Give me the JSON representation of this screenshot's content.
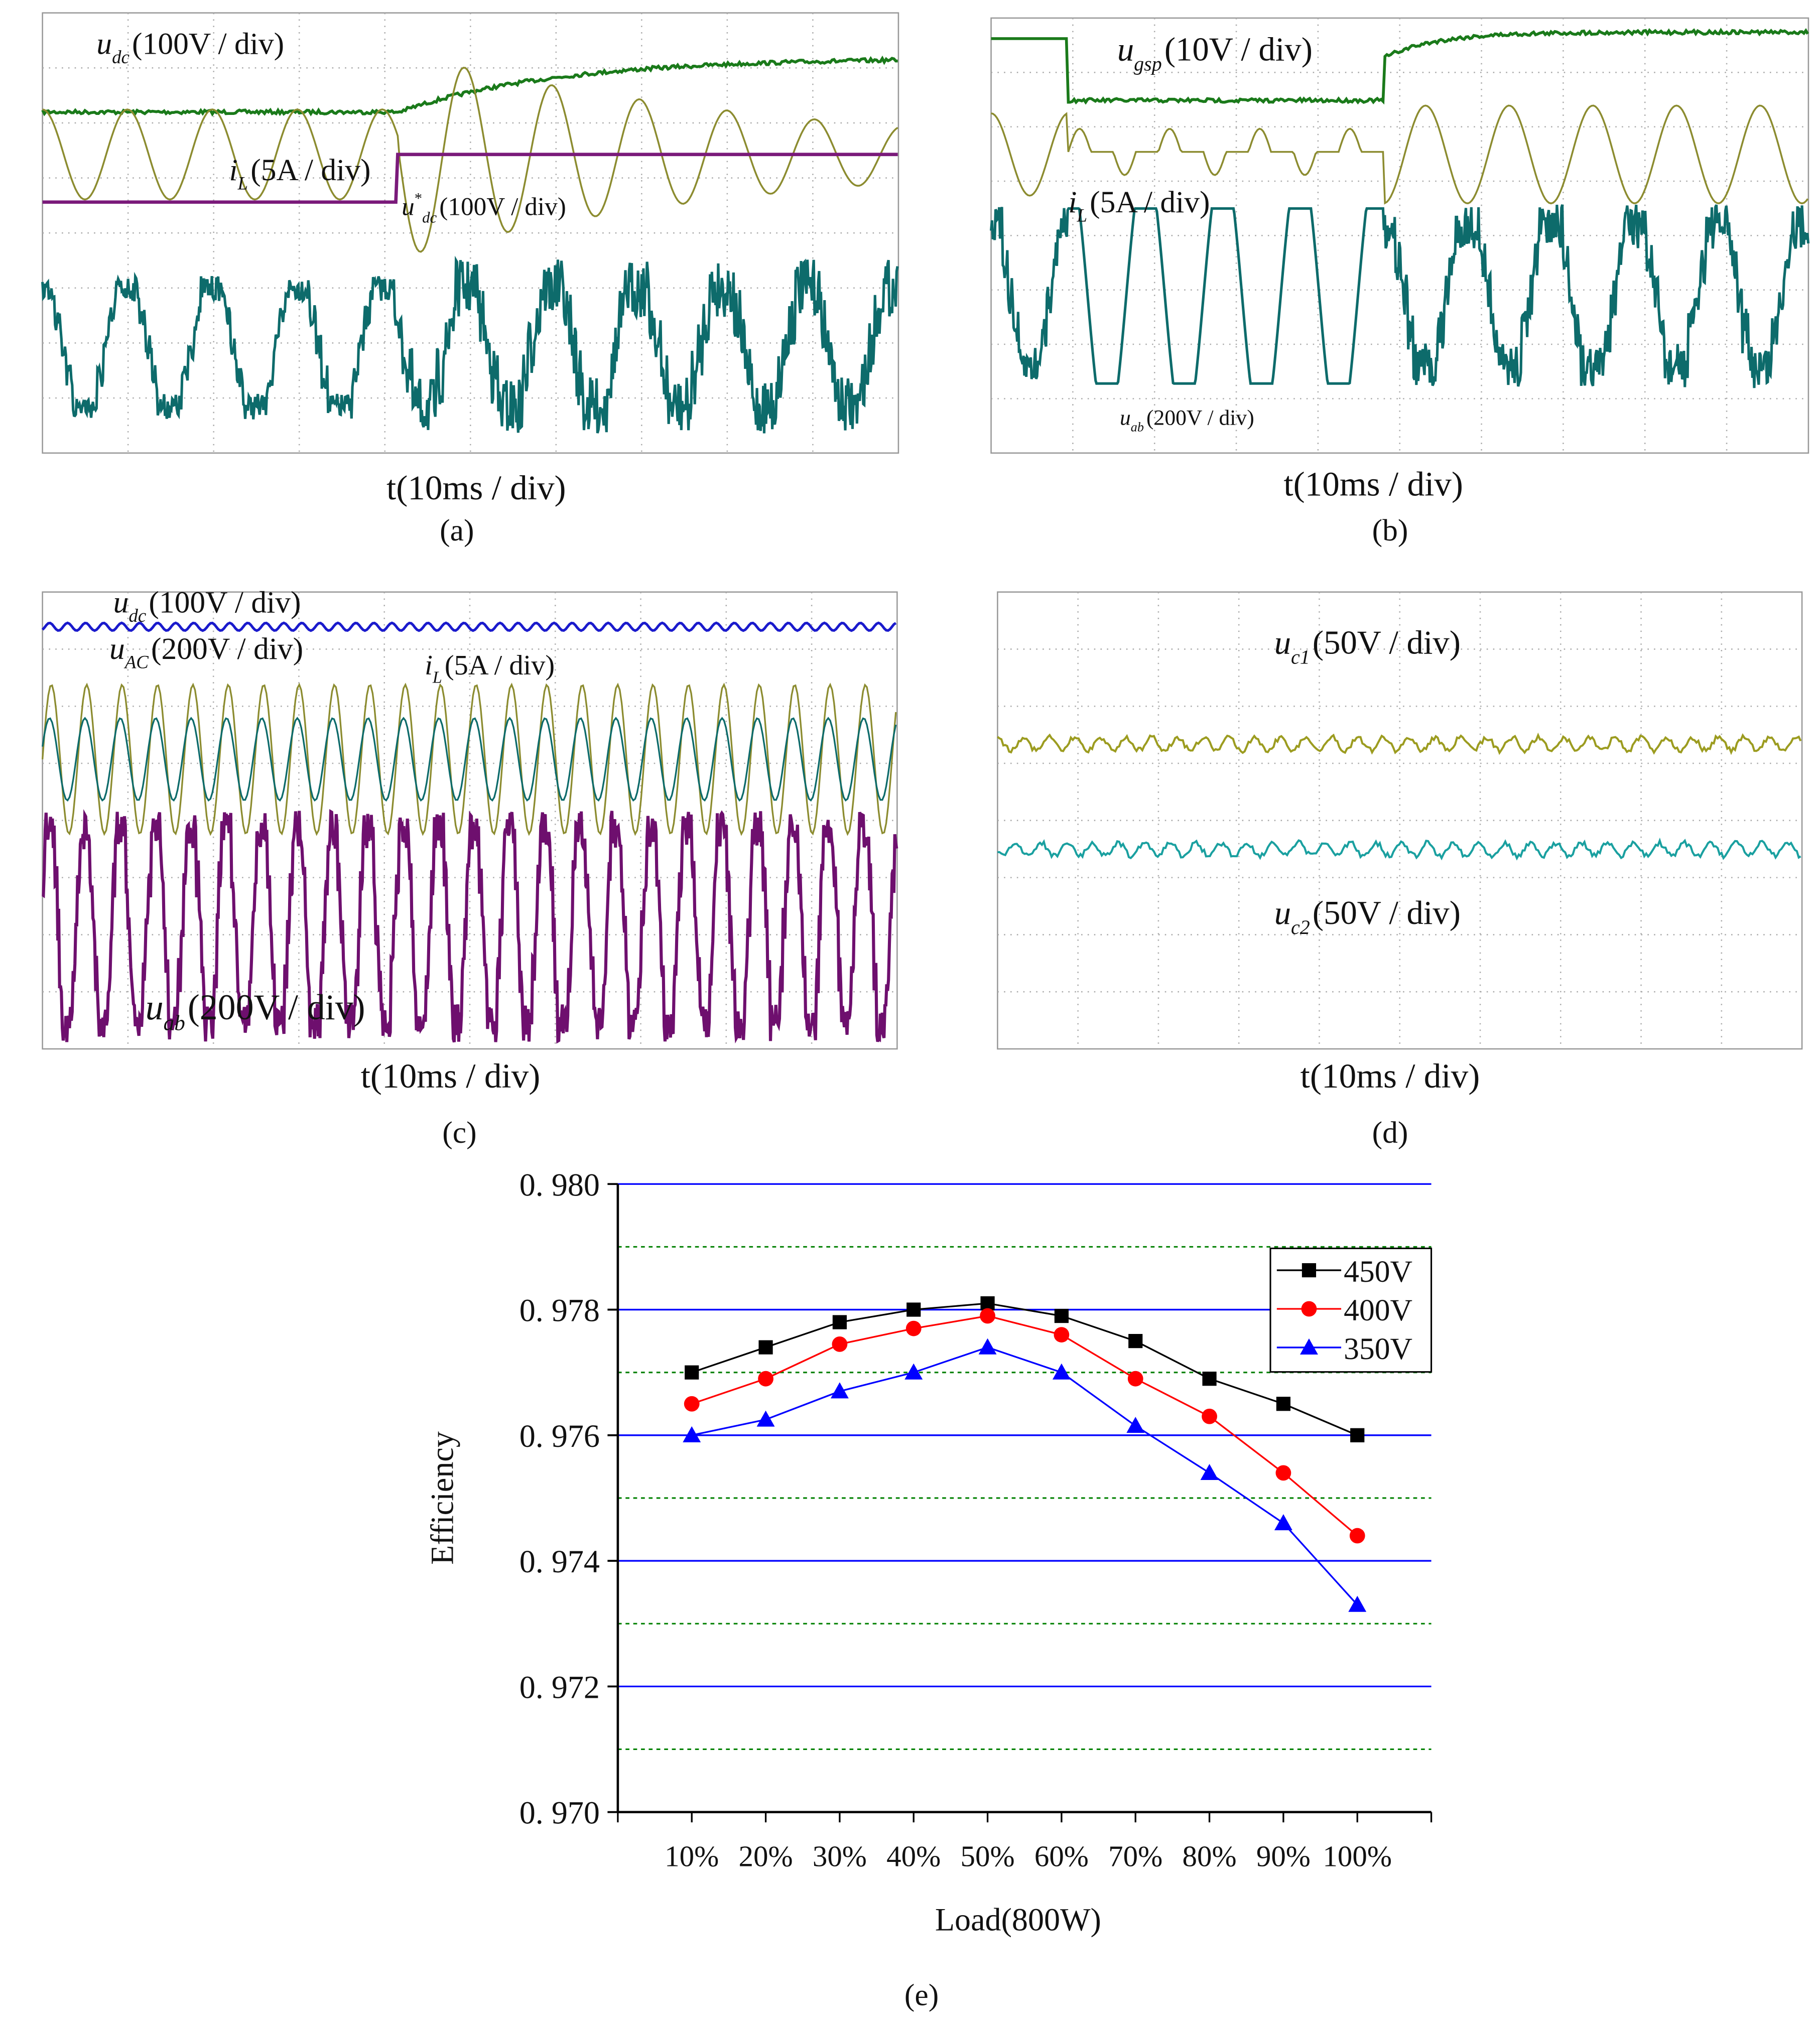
{
  "scope_panels": [
    {
      "caption": "(a)",
      "xlabel": "t(10ms / div)",
      "labels": [
        {
          "symbol": "u",
          "sub": "dc",
          "scale": "(100V / div)"
        },
        {
          "symbol": "i",
          "sub": "L",
          "scale": "(5A / div)"
        },
        {
          "symbol": "u",
          "sup": "*",
          "sub": "dc",
          "scale": "(100V / div)"
        }
      ]
    },
    {
      "caption": "(b)",
      "xlabel": "t(10ms / div)",
      "labels": [
        {
          "symbol": "u",
          "sub": "gsp",
          "scale": "(10V / div)"
        },
        {
          "symbol": "i",
          "sub": "L",
          "scale": "(5A / div)"
        },
        {
          "symbol": "u",
          "sub": "ab",
          "scale": "(200V / div)"
        }
      ]
    },
    {
      "caption": "(c)",
      "xlabel": "t(10ms / div)",
      "labels": [
        {
          "symbol": "u",
          "sub": "dc",
          "scale": "(100V / div)"
        },
        {
          "symbol": "u",
          "sub": "AC",
          "scale": "(200V / div)"
        },
        {
          "symbol": "i",
          "sub": "L",
          "scale": "(5A / div)"
        },
        {
          "symbol": "u",
          "sub": "ab",
          "scale": "(200V / div)"
        }
      ]
    },
    {
      "caption": "(d)",
      "xlabel": "t(10ms / div)",
      "labels": [
        {
          "symbol": "u",
          "sub": "c1",
          "scale": "(50V / div)"
        },
        {
          "symbol": "u",
          "sub": "c2",
          "scale": "(50V / div)"
        }
      ]
    }
  ],
  "chart_data": {
    "type": "line",
    "caption": "(e)",
    "xlabel": "Load(800W)",
    "ylabel": "Efficiency",
    "categories": [
      "10%",
      "20%",
      "30%",
      "40%",
      "50%",
      "60%",
      "70%",
      "80%",
      "90%",
      "100%"
    ],
    "series": [
      {
        "name": "450V",
        "color": "#000000",
        "marker": "square",
        "values": [
          0.977,
          0.9774,
          0.9778,
          0.978,
          0.9781,
          0.9779,
          0.9775,
          0.9769,
          0.9765,
          0.976
        ]
      },
      {
        "name": "400V",
        "color": "#ff0000",
        "marker": "circle",
        "values": [
          0.9765,
          0.9769,
          0.97745,
          0.9777,
          0.9779,
          0.9776,
          0.9769,
          0.9763,
          0.9754,
          0.9744
        ]
      },
      {
        "name": "350V",
        "color": "#0000ff",
        "marker": "triangle",
        "values": [
          0.976,
          0.97625,
          0.9767,
          0.977,
          0.9774,
          0.977,
          0.97615,
          0.9754,
          0.9746,
          0.9733
        ]
      }
    ],
    "ylim": [
      0.97,
      0.98
    ],
    "yticks": [
      {
        "value": 0.97,
        "label": "0. 970"
      },
      {
        "value": 0.972,
        "label": "0. 972"
      },
      {
        "value": 0.974,
        "label": "0. 974"
      },
      {
        "value": 0.976,
        "label": "0. 976"
      },
      {
        "value": 0.978,
        "label": "0. 978"
      },
      {
        "value": 0.98,
        "label": "0. 980"
      }
    ],
    "minor_yticks": [
      0.971,
      0.973,
      0.975,
      0.977,
      0.979
    ],
    "grid": true,
    "grid_color": "#0000ff",
    "minor_grid_color": "#008000",
    "legend": "upper right"
  }
}
